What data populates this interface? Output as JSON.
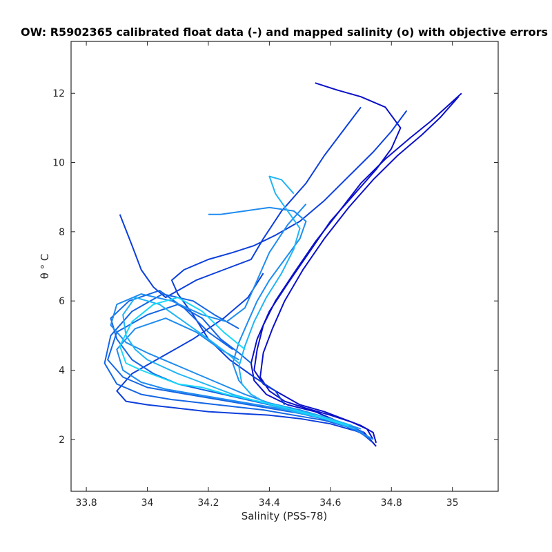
{
  "chart_data": {
    "type": "line",
    "title": "OW: R5902365 calibrated float data (-) and mapped salinity (o) with objective errors",
    "xlabel": "Salinity (PSS-78)",
    "ylabel": "θ ° C",
    "xlim": [
      33.75,
      35.15
    ],
    "ylim": [
      0.5,
      13.5
    ],
    "xticks": [
      33.8,
      34,
      34.2,
      34.4,
      34.6,
      34.8,
      35
    ],
    "yticks": [
      2,
      4,
      6,
      8,
      10,
      12
    ],
    "xtick_labels": [
      "33.8",
      "34",
      "34.2",
      "34.4",
      "34.6",
      "34.8",
      "35"
    ],
    "ytick_labels": [
      "2",
      "4",
      "6",
      "8",
      "10",
      "12"
    ],
    "grid": false,
    "colormap": [
      "#0a10c8",
      "#0c3fdc",
      "#1466e6",
      "#1f8cf0",
      "#20b4f5",
      "#18d8f8"
    ],
    "series": [
      {
        "x": [
          34.75,
          34.74,
          34.7,
          34.64,
          34.58,
          34.5,
          34.44,
          34.38,
          34.35,
          34.36,
          34.38,
          34.42,
          34.48,
          34.55,
          34.63,
          34.7,
          34.78,
          34.86,
          34.93,
          34.98,
          35.03
        ],
        "y": [
          1.9,
          2.2,
          2.4,
          2.6,
          2.8,
          3.0,
          3.3,
          3.6,
          4.0,
          4.6,
          5.3,
          6.0,
          6.8,
          7.7,
          8.6,
          9.4,
          10.1,
          10.7,
          11.2,
          11.6,
          12.0
        ]
      },
      {
        "x": [
          34.74,
          34.72,
          34.67,
          34.6,
          34.52,
          34.45,
          34.4,
          34.37,
          34.38,
          34.41,
          34.45,
          34.51,
          34.58,
          34.66,
          34.74,
          34.82,
          34.9,
          34.96,
          35.02
        ],
        "y": [
          2.0,
          2.3,
          2.5,
          2.7,
          2.9,
          3.1,
          3.4,
          3.8,
          4.5,
          5.2,
          6.0,
          6.9,
          7.8,
          8.7,
          9.5,
          10.2,
          10.8,
          11.3,
          11.9
        ]
      },
      {
        "x": [
          34.75,
          34.71,
          34.63,
          34.55,
          34.46,
          34.39,
          34.35,
          34.34,
          34.36,
          34.4,
          34.46,
          34.53,
          34.6,
          34.68,
          34.75,
          34.8,
          34.83,
          34.78,
          34.7,
          34.62,
          34.55
        ],
        "y": [
          1.8,
          2.2,
          2.5,
          2.8,
          3.0,
          3.3,
          3.7,
          4.2,
          4.9,
          5.7,
          6.5,
          7.4,
          8.3,
          9.1,
          9.8,
          10.4,
          11.0,
          11.6,
          11.9,
          12.1,
          12.3
        ]
      },
      {
        "x": [
          34.45,
          34.42,
          34.35,
          34.27,
          34.2,
          34.15,
          34.1,
          34.08,
          34.12,
          34.2,
          34.28,
          34.35,
          34.42,
          34.5,
          34.58,
          34.66,
          34.74,
          34.8,
          34.85
        ],
        "y": [
          3.0,
          3.4,
          3.8,
          4.3,
          4.9,
          5.6,
          6.2,
          6.6,
          6.9,
          7.2,
          7.4,
          7.6,
          7.9,
          8.3,
          8.9,
          9.6,
          10.3,
          10.9,
          11.5
        ]
      },
      {
        "x": [
          33.91,
          33.95,
          33.98,
          34.02,
          34.06,
          34.1,
          34.16,
          34.22,
          34.28,
          34.34,
          34.38,
          34.44,
          34.52,
          34.58,
          34.64,
          34.7
        ],
        "y": [
          8.5,
          7.6,
          6.9,
          6.4,
          6.1,
          6.3,
          6.6,
          6.8,
          7.0,
          7.2,
          7.8,
          8.6,
          9.4,
          10.2,
          10.9,
          11.6
        ]
      },
      {
        "x": [
          34.74,
          34.7,
          34.6,
          34.5,
          34.4,
          34.3,
          34.2,
          34.1,
          34.0,
          33.93,
          33.9,
          33.95,
          34.05,
          34.15,
          34.25,
          34.33,
          34.38
        ],
        "y": [
          1.9,
          2.2,
          2.45,
          2.6,
          2.7,
          2.75,
          2.8,
          2.9,
          3.0,
          3.1,
          3.4,
          3.9,
          4.4,
          4.9,
          5.5,
          6.1,
          6.8
        ]
      },
      {
        "x": [
          34.73,
          34.68,
          34.58,
          34.48,
          34.38,
          34.28,
          34.18,
          34.08,
          33.98,
          33.9,
          33.86,
          33.88,
          33.95,
          34.05,
          34.15,
          34.22,
          34.3
        ],
        "y": [
          2.0,
          2.3,
          2.55,
          2.7,
          2.85,
          2.95,
          3.05,
          3.15,
          3.3,
          3.6,
          4.2,
          5.0,
          5.7,
          6.2,
          6.0,
          5.6,
          5.2
        ]
      },
      {
        "x": [
          34.72,
          34.62,
          34.5,
          34.4,
          34.3,
          34.2,
          34.1,
          34.0,
          33.92,
          33.87,
          33.9,
          34.0,
          34.1,
          34.18,
          34.24,
          34.3,
          34.34
        ],
        "y": [
          2.1,
          2.5,
          2.75,
          2.9,
          3.05,
          3.2,
          3.35,
          3.5,
          3.8,
          4.3,
          5.1,
          5.6,
          5.9,
          5.5,
          4.9,
          4.5,
          4.2
        ]
      },
      {
        "x": [
          34.71,
          34.6,
          34.5,
          34.4,
          34.3,
          34.2,
          34.1,
          34.02,
          33.95,
          33.9,
          33.88,
          33.94,
          34.04,
          34.12,
          34.2,
          34.28
        ],
        "y": [
          2.2,
          2.55,
          2.8,
          3.0,
          3.2,
          3.4,
          3.6,
          3.9,
          4.3,
          4.9,
          5.5,
          6.0,
          6.3,
          5.8,
          5.1,
          4.6
        ]
      },
      {
        "x": [
          34.74,
          34.66,
          34.56,
          34.46,
          34.36,
          34.26,
          34.16,
          34.06,
          33.98,
          33.92,
          33.9,
          33.96,
          34.06,
          34.16,
          34.24,
          34.3
        ],
        "y": [
          2.0,
          2.4,
          2.65,
          2.85,
          3.0,
          3.15,
          3.3,
          3.45,
          3.65,
          4.0,
          4.6,
          5.2,
          5.5,
          5.1,
          4.6,
          4.3
        ]
      },
      {
        "x": [
          34.7,
          34.6,
          34.5,
          34.4,
          34.32,
          34.24,
          34.16,
          34.08,
          34.0,
          33.93,
          33.88,
          33.9,
          33.98,
          34.08,
          34.18,
          34.26,
          34.32,
          34.36,
          34.4,
          34.46,
          34.52
        ],
        "y": [
          2.3,
          2.6,
          2.85,
          3.05,
          3.3,
          3.6,
          3.9,
          4.2,
          4.5,
          4.8,
          5.3,
          5.9,
          6.2,
          6.0,
          5.6,
          5.4,
          5.8,
          6.6,
          7.4,
          8.2,
          8.8
        ]
      },
      {
        "x": [
          34.69,
          34.58,
          34.48,
          34.4,
          34.34,
          34.3,
          34.28,
          34.3,
          34.33,
          34.36,
          34.4,
          34.45,
          34.5,
          34.52,
          34.48,
          34.4,
          34.32,
          34.24,
          34.2
        ],
        "y": [
          2.3,
          2.6,
          2.8,
          3.0,
          3.3,
          3.7,
          4.2,
          4.8,
          5.4,
          6.0,
          6.6,
          7.2,
          7.8,
          8.3,
          8.6,
          8.7,
          8.6,
          8.5,
          8.5
        ]
      },
      {
        "x": [
          34.68,
          34.58,
          34.48,
          34.4,
          34.34,
          34.31,
          34.3,
          34.32,
          34.35,
          34.39,
          34.44,
          34.48,
          34.5,
          34.46,
          34.42,
          34.4,
          34.44,
          34.48
        ],
        "y": [
          2.3,
          2.6,
          2.8,
          3.0,
          3.3,
          3.6,
          4.1,
          4.7,
          5.4,
          6.1,
          6.8,
          7.5,
          8.1,
          8.6,
          9.1,
          9.6,
          9.5,
          9.1
        ]
      },
      {
        "x": [
          34.67,
          34.56,
          34.46,
          34.36,
          34.28,
          34.22,
          34.16,
          34.1,
          34.05,
          34.0,
          33.96,
          33.93,
          33.92,
          33.96,
          34.04,
          34.12,
          34.2,
          34.26,
          34.3
        ],
        "y": [
          2.4,
          2.7,
          2.9,
          3.1,
          3.3,
          3.5,
          3.7,
          3.9,
          4.1,
          4.3,
          4.6,
          5.0,
          5.6,
          6.1,
          5.9,
          5.4,
          4.9,
          4.5,
          4.2
        ]
      },
      {
        "x": [
          34.66,
          34.54,
          34.44,
          34.34,
          34.26,
          34.18,
          34.1,
          34.04,
          33.98,
          33.93,
          33.91,
          33.95,
          34.02,
          34.1,
          34.18,
          34.25,
          34.32
        ],
        "y": [
          2.4,
          2.7,
          2.95,
          3.15,
          3.3,
          3.5,
          3.6,
          3.8,
          4.0,
          4.2,
          4.7,
          5.4,
          5.9,
          6.1,
          5.7,
          5.1,
          4.6
        ]
      }
    ]
  }
}
